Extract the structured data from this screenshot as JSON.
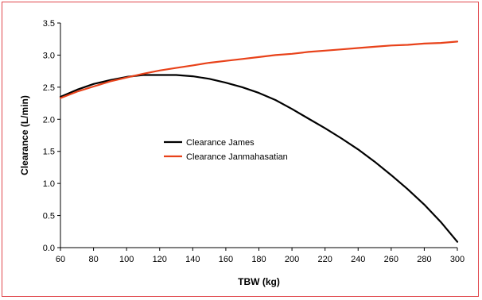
{
  "chart_data": {
    "type": "line",
    "title": "",
    "xlabel": "TBW (kg)",
    "ylabel": "Clearance (L/min)",
    "xlim": [
      60,
      300
    ],
    "ylim": [
      0,
      3.5
    ],
    "x_ticks": [
      "60",
      "80",
      "100",
      "120",
      "140",
      "160",
      "180",
      "200",
      "220",
      "240",
      "260",
      "280",
      "300"
    ],
    "y_ticks": [
      "0.0",
      "0.5",
      "1.0",
      "1.5",
      "2.0",
      "2.5",
      "3.0",
      "3.5"
    ],
    "grid": false,
    "legend_position": "center",
    "series": [
      {
        "name": "Clearance James",
        "color": "#000000",
        "x": [
          60,
          70,
          80,
          90,
          100,
          110,
          120,
          130,
          140,
          150,
          160,
          170,
          180,
          190,
          200,
          210,
          220,
          230,
          240,
          250,
          260,
          270,
          280,
          290,
          300
        ],
        "y": [
          2.35,
          2.46,
          2.55,
          2.61,
          2.66,
          2.69,
          2.69,
          2.69,
          2.67,
          2.63,
          2.57,
          2.5,
          2.41,
          2.3,
          2.16,
          2.01,
          1.86,
          1.7,
          1.53,
          1.34,
          1.13,
          0.91,
          0.67,
          0.4,
          0.09
        ]
      },
      {
        "name": "Clearance Janmahasatian",
        "color": "#e8421a",
        "x": [
          60,
          70,
          80,
          90,
          100,
          110,
          120,
          130,
          140,
          150,
          160,
          170,
          180,
          190,
          200,
          210,
          220,
          230,
          240,
          250,
          260,
          270,
          280,
          290,
          300
        ],
        "y": [
          2.33,
          2.43,
          2.51,
          2.59,
          2.65,
          2.71,
          2.76,
          2.8,
          2.84,
          2.88,
          2.91,
          2.94,
          2.97,
          3.0,
          3.02,
          3.05,
          3.07,
          3.09,
          3.11,
          3.13,
          3.15,
          3.16,
          3.18,
          3.19,
          3.21
        ]
      }
    ]
  }
}
